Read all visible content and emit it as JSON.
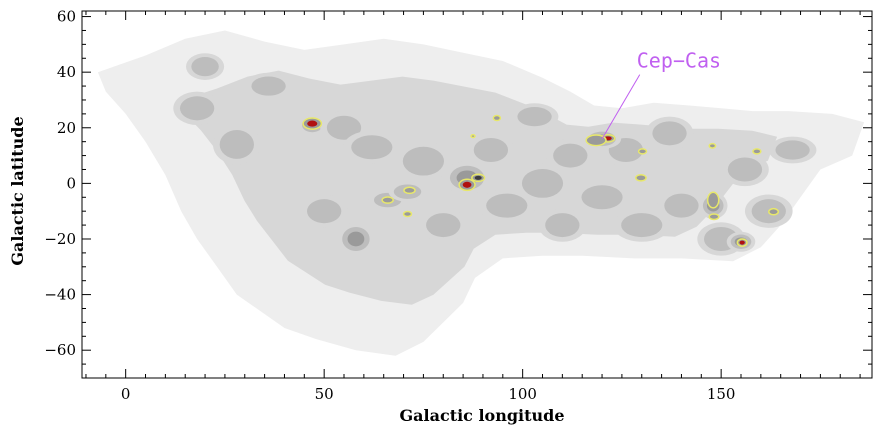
{
  "chart_data": {
    "type": "heatmap",
    "xlabel": "Galactic longitude",
    "ylabel": "Galactic latitude",
    "xlim": [
      -11,
      188
    ],
    "ylim": [
      -70,
      62
    ],
    "x_ticks": [
      0,
      50,
      100,
      150
    ],
    "y_ticks": [
      -60,
      -40,
      -20,
      0,
      20,
      40,
      60
    ],
    "grid": false,
    "annotation": {
      "text": "Cep−Cas",
      "color": "#c060f0",
      "points_to": {
        "l": 120,
        "b": 16
      },
      "text_anchor": {
        "l": 130,
        "b": 42
      }
    },
    "contour_levels": [
      {
        "level": 1,
        "color": "#eeeeee"
      },
      {
        "level": 2,
        "color": "#d7d7d7"
      },
      {
        "level": 3,
        "color": "#bdbdbd"
      },
      {
        "level": 4,
        "color": "#9a9a9a"
      },
      {
        "level": 5,
        "color": "#7a7a7a"
      }
    ],
    "survey_outline": [
      [
        -7,
        40
      ],
      [
        5,
        46
      ],
      [
        15,
        52
      ],
      [
        25,
        55
      ],
      [
        35,
        51
      ],
      [
        45,
        48
      ],
      [
        55,
        50
      ],
      [
        65,
        52
      ],
      [
        75,
        50
      ],
      [
        85,
        47
      ],
      [
        95,
        44
      ],
      [
        105,
        38
      ],
      [
        112,
        33
      ],
      [
        118,
        28
      ],
      [
        125,
        27
      ],
      [
        133,
        29
      ],
      [
        142,
        28
      ],
      [
        150,
        27
      ],
      [
        158,
        26
      ],
      [
        167,
        26
      ],
      [
        178,
        25
      ],
      [
        186,
        22
      ],
      [
        183,
        10
      ],
      [
        175,
        5
      ],
      [
        170,
        -5
      ],
      [
        165,
        -15
      ],
      [
        160,
        -23
      ],
      [
        153,
        -28
      ],
      [
        140,
        -27
      ],
      [
        128,
        -27
      ],
      [
        115,
        -26
      ],
      [
        105,
        -26
      ],
      [
        95,
        -27
      ],
      [
        88,
        -34
      ],
      [
        85,
        -43
      ],
      [
        80,
        -50
      ],
      [
        75,
        -57
      ],
      [
        68,
        -62
      ],
      [
        58,
        -60
      ],
      [
        48,
        -56
      ],
      [
        40,
        -52
      ],
      [
        33,
        -45
      ],
      [
        28,
        -40
      ],
      [
        23,
        -30
      ],
      [
        18,
        -20
      ],
      [
        14,
        -10
      ],
      [
        10,
        3
      ],
      [
        5,
        15
      ],
      [
        0,
        25
      ],
      [
        -5,
        33
      ]
    ],
    "clumps": [
      {
        "l": 20,
        "b": 42,
        "w": 4,
        "h": 4,
        "level": 3
      },
      {
        "l": 18,
        "b": 27,
        "w": 5,
        "h": 5,
        "level": 3
      },
      {
        "l": 28,
        "b": 14,
        "w": 5,
        "h": 6,
        "level": 3
      },
      {
        "l": 36,
        "b": 35,
        "w": 5,
        "h": 4,
        "level": 3
      },
      {
        "l": 47,
        "b": 21,
        "w": 3,
        "h": 3,
        "level": 4
      },
      {
        "l": 55,
        "b": 20,
        "w": 5,
        "h": 5,
        "level": 3
      },
      {
        "l": 62,
        "b": 13,
        "w": 6,
        "h": 5,
        "level": 3
      },
      {
        "l": 58,
        "b": -20,
        "w": 4,
        "h": 5,
        "level": 4
      },
      {
        "l": 50,
        "b": -10,
        "w": 5,
        "h": 5,
        "level": 3
      },
      {
        "l": 66,
        "b": -6,
        "w": 4,
        "h": 3,
        "level": 3
      },
      {
        "l": 71,
        "b": -3,
        "w": 4,
        "h": 3,
        "level": 3
      },
      {
        "l": 75,
        "b": 8,
        "w": 6,
        "h": 6,
        "level": 3
      },
      {
        "l": 80,
        "b": -15,
        "w": 5,
        "h": 5,
        "level": 3
      },
      {
        "l": 86,
        "b": 2,
        "w": 5,
        "h": 5,
        "level": 4
      },
      {
        "l": 92,
        "b": 12,
        "w": 5,
        "h": 5,
        "level": 3
      },
      {
        "l": 96,
        "b": -8,
        "w": 6,
        "h": 5,
        "level": 3
      },
      {
        "l": 103,
        "b": 24,
        "w": 5,
        "h": 4,
        "level": 3
      },
      {
        "l": 105,
        "b": 0,
        "w": 6,
        "h": 6,
        "level": 3
      },
      {
        "l": 110,
        "b": -15,
        "w": 5,
        "h": 5,
        "level": 3
      },
      {
        "l": 112,
        "b": 10,
        "w": 5,
        "h": 5,
        "level": 3
      },
      {
        "l": 120,
        "b": -5,
        "w": 6,
        "h": 5,
        "level": 3
      },
      {
        "l": 126,
        "b": 12,
        "w": 5,
        "h": 5,
        "level": 3
      },
      {
        "l": 130,
        "b": -15,
        "w": 6,
        "h": 5,
        "level": 3
      },
      {
        "l": 137,
        "b": 18,
        "w": 5,
        "h": 5,
        "level": 3
      },
      {
        "l": 140,
        "b": -8,
        "w": 5,
        "h": 5,
        "level": 3
      },
      {
        "l": 150,
        "b": -20,
        "w": 5,
        "h": 5,
        "level": 3
      },
      {
        "l": 156,
        "b": 5,
        "w": 5,
        "h": 5,
        "level": 3
      },
      {
        "l": 162,
        "b": -10,
        "w": 5,
        "h": 5,
        "level": 3
      },
      {
        "l": 168,
        "b": 12,
        "w": 5,
        "h": 4,
        "level": 3
      },
      {
        "l": 120,
        "b": 16,
        "w": 4,
        "h": 3,
        "level": 5
      },
      {
        "l": 155,
        "b": -21,
        "w": 3,
        "h": 3,
        "level": 4
      },
      {
        "l": 148,
        "b": -8,
        "w": 3,
        "h": 4,
        "level": 4
      }
    ],
    "peaks": [
      {
        "l": 47,
        "b": 21.5,
        "rx": 2.3,
        "ry": 2.0,
        "outline": "#e8e86a",
        "core": "#b01010"
      },
      {
        "l": 86,
        "b": -0.5,
        "rx": 2.0,
        "ry": 2.0,
        "outline": "#e8e86a",
        "core": "#b01010"
      },
      {
        "l": 88.8,
        "b": 2,
        "rx": 1.6,
        "ry": 1.3,
        "outline": "#e8e86a",
        "core": "#3c3c3c"
      },
      {
        "l": 66,
        "b": -6,
        "rx": 1.4,
        "ry": 1.1,
        "outline": "#e8e86a",
        "core": ""
      },
      {
        "l": 71.5,
        "b": -2.5,
        "rx": 1.4,
        "ry": 1.1,
        "outline": "#e8e86a",
        "core": ""
      },
      {
        "l": 71,
        "b": -11,
        "rx": 1.0,
        "ry": 0.9,
        "outline": "#e8e86a",
        "core": ""
      },
      {
        "l": 93.5,
        "b": 23.5,
        "rx": 0.9,
        "ry": 0.9,
        "outline": "#e8e86a",
        "core": ""
      },
      {
        "l": 87.5,
        "b": 17,
        "rx": 0.5,
        "ry": 0.5,
        "outline": "#e8e86a",
        "core": ""
      },
      {
        "l": 121.5,
        "b": 16.2,
        "rx": 1.7,
        "ry": 1.3,
        "outline": "#e8e86a",
        "core": "#b01010"
      },
      {
        "l": 118.5,
        "b": 15.5,
        "rx": 2.5,
        "ry": 1.9,
        "outline": "#e8e86a",
        "core": ""
      },
      {
        "l": 130.2,
        "b": 11.5,
        "rx": 1.0,
        "ry": 0.9,
        "outline": "#e8e86a",
        "core": ""
      },
      {
        "l": 129.8,
        "b": 2,
        "rx": 1.3,
        "ry": 1.1,
        "outline": "#e8e86a",
        "core": ""
      },
      {
        "l": 147.8,
        "b": 13.5,
        "rx": 0.8,
        "ry": 0.8,
        "outline": "#e8e86a",
        "core": ""
      },
      {
        "l": 159,
        "b": 11.5,
        "rx": 1.0,
        "ry": 0.9,
        "outline": "#e8e86a",
        "core": ""
      },
      {
        "l": 148,
        "b": -6,
        "rx": 1.4,
        "ry": 2.8,
        "outline": "#e8e86a",
        "core": ""
      },
      {
        "l": 148.2,
        "b": -12,
        "rx": 1.2,
        "ry": 1.0,
        "outline": "#e8e86a",
        "core": ""
      },
      {
        "l": 163.2,
        "b": -10.2,
        "rx": 1.2,
        "ry": 1.1,
        "outline": "#e8e86a",
        "core": ""
      },
      {
        "l": 155.3,
        "b": -21.3,
        "rx": 1.2,
        "ry": 1.3,
        "outline": "#e8e86a",
        "core": "#b01010"
      }
    ]
  }
}
